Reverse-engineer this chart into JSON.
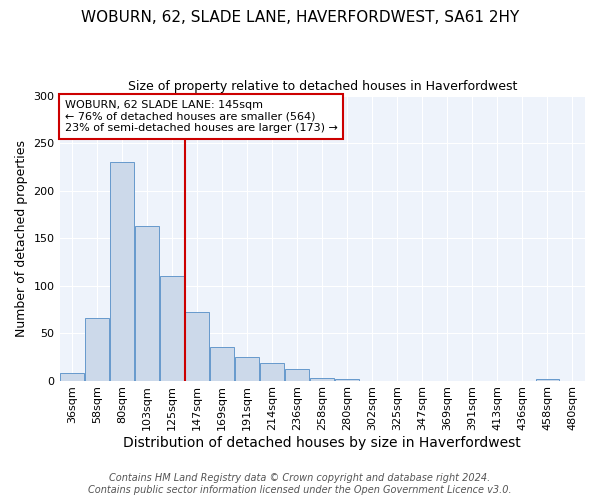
{
  "title": "WOBURN, 62, SLADE LANE, HAVERFORDWEST, SA61 2HY",
  "subtitle": "Size of property relative to detached houses in Haverfordwest",
  "xlabel": "Distribution of detached houses by size in Haverfordwest",
  "ylabel": "Number of detached properties",
  "bar_color": "#ccd9ea",
  "bar_edge_color": "#6699cc",
  "categories": [
    "36sqm",
    "58sqm",
    "80sqm",
    "103sqm",
    "125sqm",
    "147sqm",
    "169sqm",
    "191sqm",
    "214sqm",
    "236sqm",
    "258sqm",
    "280sqm",
    "302sqm",
    "325sqm",
    "347sqm",
    "369sqm",
    "391sqm",
    "413sqm",
    "436sqm",
    "458sqm",
    "480sqm"
  ],
  "values": [
    8,
    66,
    230,
    163,
    110,
    72,
    35,
    25,
    18,
    12,
    3,
    2,
    0,
    0,
    0,
    0,
    0,
    0,
    0,
    2,
    0
  ],
  "property_label": "WOBURN, 62 SLADE LANE: 145sqm",
  "annotation_line1": "← 76% of detached houses are smaller (564)",
  "annotation_line2": "23% of semi-detached houses are larger (173) →",
  "red_line_index": 5,
  "ylim": [
    0,
    300
  ],
  "yticks": [
    0,
    50,
    100,
    150,
    200,
    250,
    300
  ],
  "background_color": "#eef3fb",
  "footer_line1": "Contains HM Land Registry data © Crown copyright and database right 2024.",
  "footer_line2": "Contains public sector information licensed under the Open Government Licence v3.0.",
  "title_fontsize": 11,
  "subtitle_fontsize": 9,
  "xlabel_fontsize": 10,
  "ylabel_fontsize": 9,
  "tick_fontsize": 8,
  "annotation_fontsize": 8,
  "footer_fontsize": 7,
  "annotation_box_color": "#ffffff",
  "annotation_border_color": "#cc0000",
  "red_line_color": "#cc0000"
}
